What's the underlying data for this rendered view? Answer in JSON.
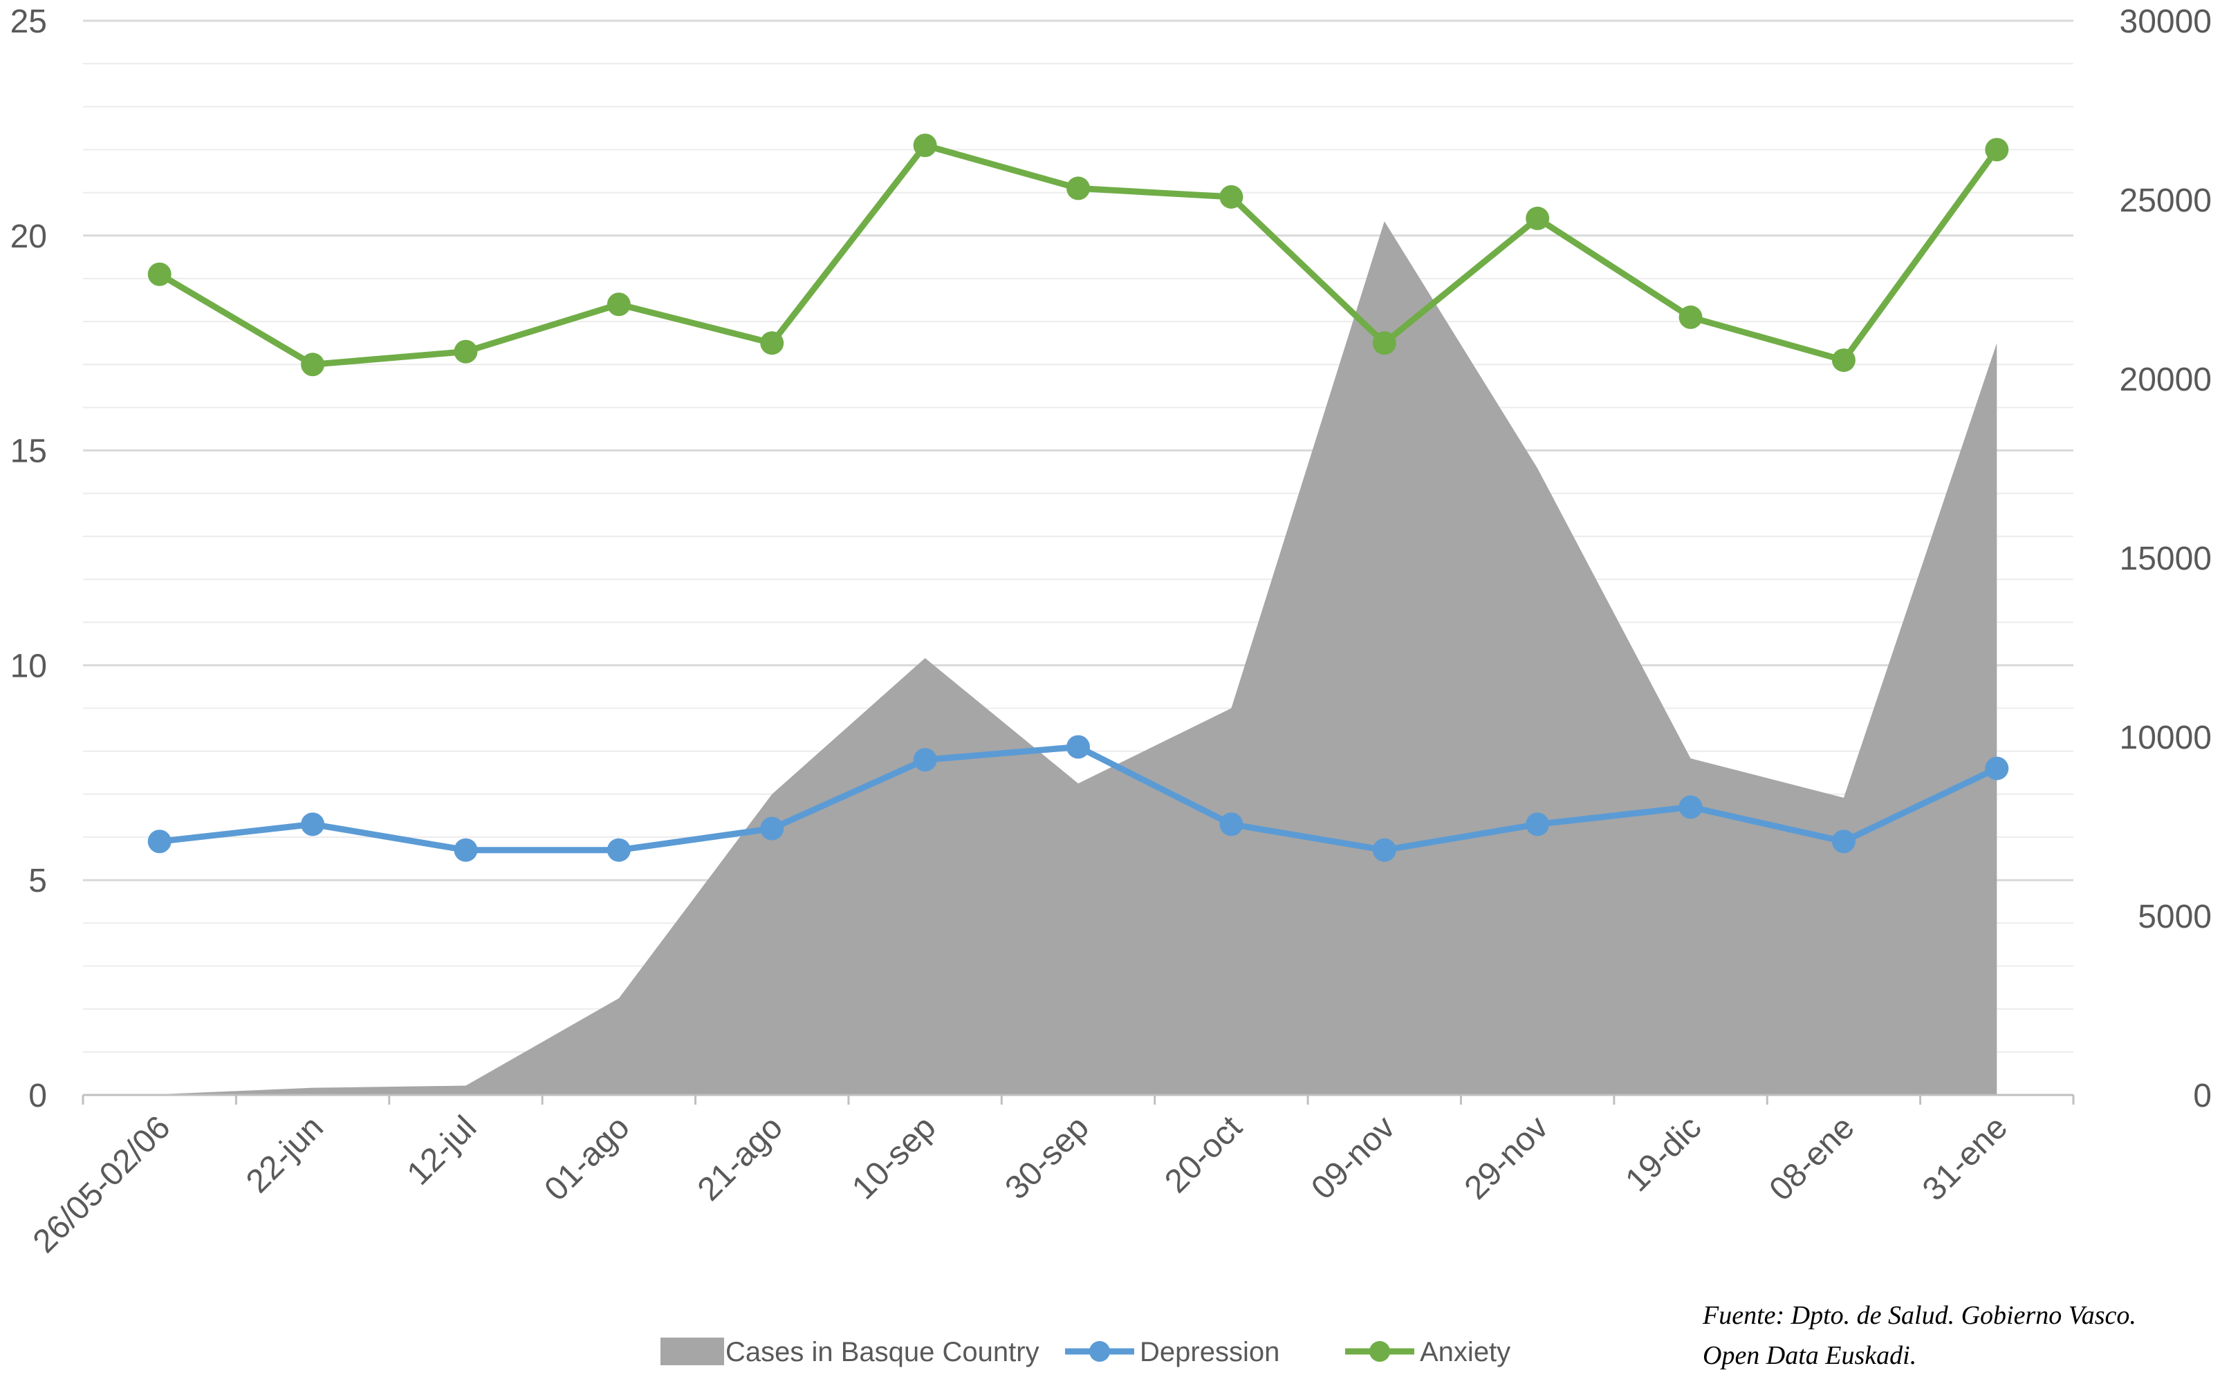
{
  "chart_data": {
    "type": "line",
    "categories": [
      "26/05-02/06",
      "22-jun",
      "12-jul",
      "01-ago",
      "21-ago",
      "10-sep",
      "30-sep",
      "20-oct",
      "09-nov",
      "29-nov",
      "19-dic",
      "08-ene",
      "31-ene"
    ],
    "series": [
      {
        "name": "Cases in Basque Country",
        "type": "area",
        "axis": "right",
        "color": "#a6a6a6",
        "values": [
          20,
          200,
          260,
          2700,
          8400,
          12200,
          8700,
          10800,
          24400,
          17500,
          9400,
          8300,
          21000
        ]
      },
      {
        "name": "Depression",
        "type": "line",
        "axis": "left",
        "color": "#5b9bd5",
        "values": [
          5.9,
          6.3,
          5.7,
          5.7,
          6.2,
          7.8,
          8.1,
          6.3,
          5.7,
          6.3,
          6.7,
          5.9,
          7.6
        ]
      },
      {
        "name": "Anxiety",
        "type": "line",
        "axis": "left",
        "color": "#70ad47",
        "values": [
          19.1,
          17.0,
          17.3,
          18.4,
          17.5,
          22.1,
          21.1,
          20.9,
          17.5,
          20.4,
          18.1,
          17.1,
          22.0
        ]
      }
    ],
    "y_left": {
      "min": 0,
      "max": 25,
      "ticks": [
        "0",
        "5",
        "10",
        "15",
        "20",
        "25"
      ]
    },
    "y_right": {
      "min": 0,
      "max": 30000,
      "ticks": [
        "0",
        "5000",
        "10000",
        "15000",
        "20000",
        "25000",
        "30000"
      ]
    },
    "grid": true,
    "legend_position": "bottom"
  },
  "source": {
    "line1": "Fuente: Dpto. de Salud. Gobierno Vasco.",
    "line2": "Open Data Euskadi."
  }
}
